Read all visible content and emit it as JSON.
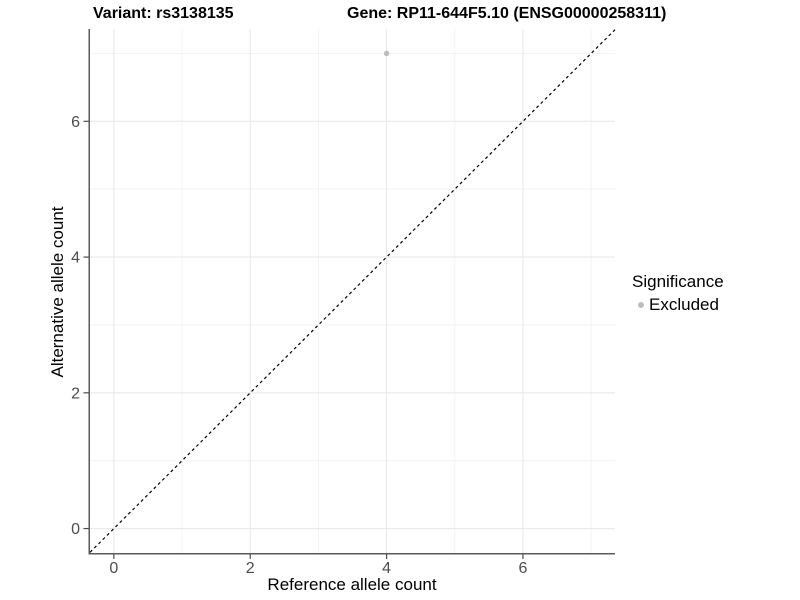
{
  "header": {
    "variant_title": "Variant: rs3138135",
    "gene_title": "Gene: RP11-644F5.10 (ENSG00000258311)"
  },
  "axes": {
    "x_label": "Reference allele count",
    "y_label": "Alternative allele count"
  },
  "legend": {
    "title": "Significance",
    "items": [
      {
        "label": "Excluded",
        "color": "#bdbdbd"
      }
    ]
  },
  "colors": {
    "background": "#ffffff",
    "grid_major": "#e7e7e7",
    "grid_minor": "#f3f3f3",
    "axis_line": "#5a5a5a",
    "tick_mark": "#4d4d4d",
    "tick_text": "#4d4d4d",
    "reference_line": "#000000",
    "point": "#bdbdbd"
  },
  "chart_data": {
    "type": "scatter",
    "xlabel": "Reference allele count",
    "ylabel": "Alternative allele count",
    "xlim": [
      -0.35,
      7.35
    ],
    "ylim": [
      -0.36,
      7.36
    ],
    "x_ticks_major": [
      0,
      2,
      4,
      6
    ],
    "x_ticks_minor": [
      1,
      3,
      5,
      7
    ],
    "y_ticks_major": [
      0,
      2,
      4,
      6
    ],
    "y_ticks_minor": [
      1,
      3,
      5,
      7
    ],
    "grid": true,
    "legend_position": "right",
    "series": [
      {
        "name": "Excluded",
        "color": "#bdbdbd",
        "points": [
          {
            "x": 4,
            "y": 7
          }
        ]
      }
    ],
    "reference_line": {
      "type": "identity",
      "slope": 1,
      "intercept": 0,
      "style": "dashed",
      "color": "#000000"
    }
  }
}
